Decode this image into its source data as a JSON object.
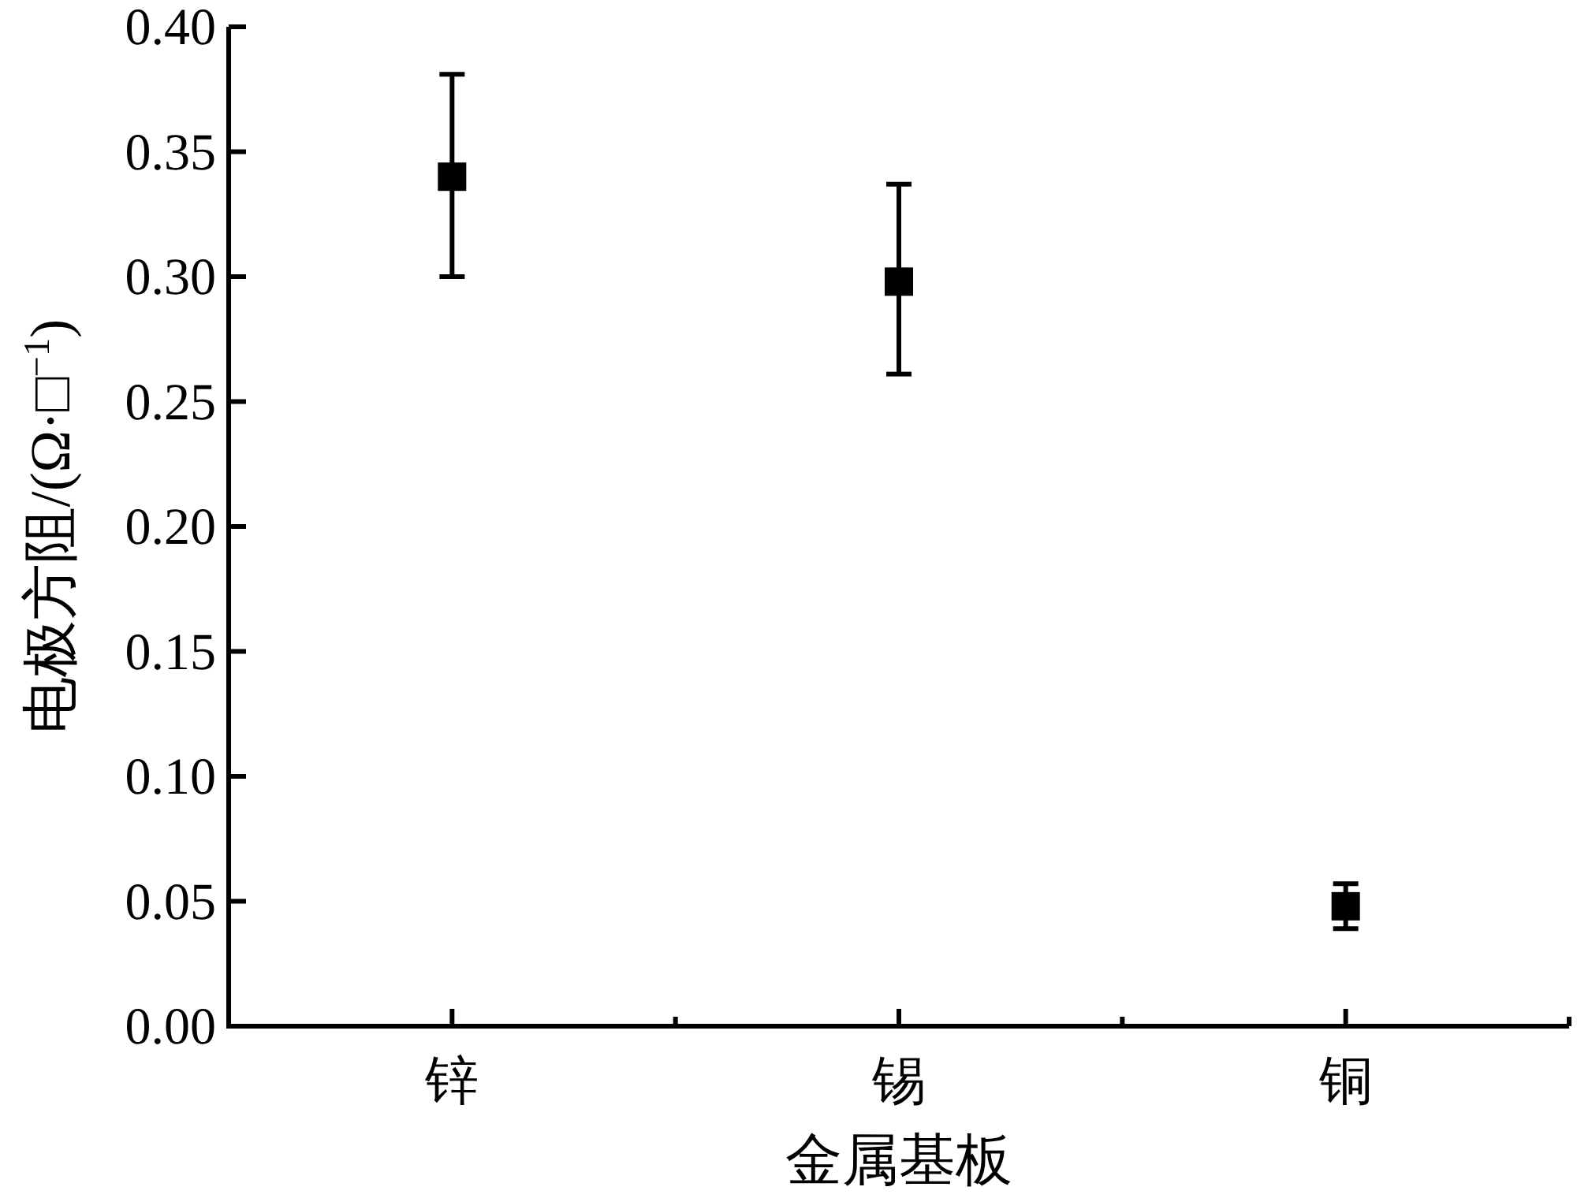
{
  "chart_data": {
    "type": "scatter",
    "xlabel": "金属基板",
    "ylabel": "电极方阻/(Ω·□$^{−1}$)",
    "categories": [
      "锌",
      "锡",
      "铜"
    ],
    "values": [
      0.34,
      0.298,
      0.048
    ],
    "errors": [
      [
        0.3,
        0.381
      ],
      [
        0.261,
        0.337
      ],
      [
        0.039,
        0.057
      ]
    ],
    "color": "#000000",
    "marker": "square",
    "grid": false,
    "ylim": [
      0,
      0.4
    ],
    "yticks": [
      {
        "value": 0,
        "label": "0.00"
      },
      {
        "value": 0.05,
        "label": "0.05"
      },
      {
        "value": 0.1,
        "label": "0.10"
      },
      {
        "value": 0.15,
        "label": "0.15"
      },
      {
        "value": 0.2,
        "label": "0.20"
      },
      {
        "value": 0.25,
        "label": "0.25"
      },
      {
        "value": 0.3,
        "label": "0.30"
      },
      {
        "value": 0.35,
        "label": "0.35"
      },
      {
        "value": 0.4,
        "label": "0.40"
      }
    ]
  }
}
